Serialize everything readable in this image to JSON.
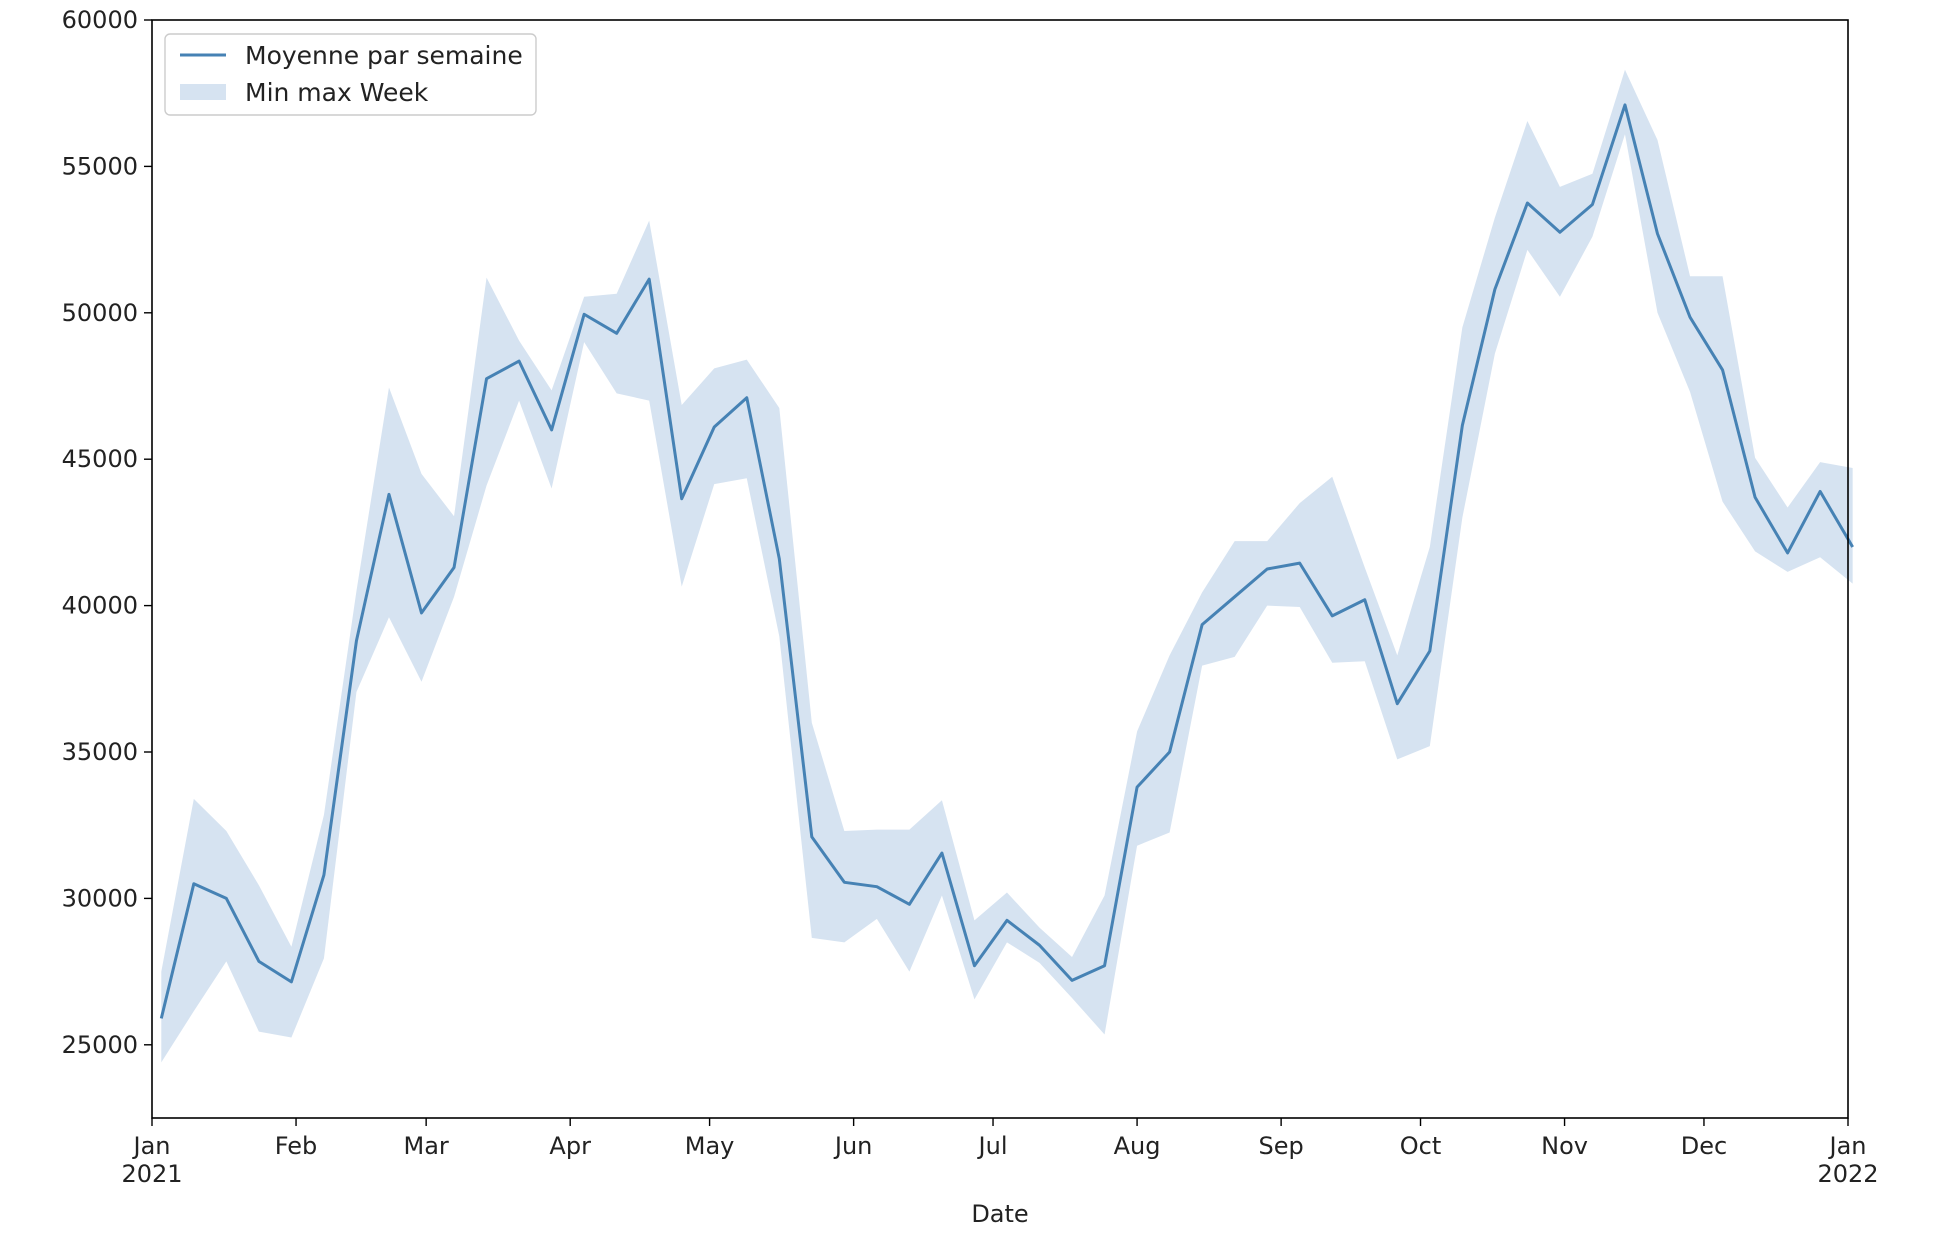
{
  "chart_data": {
    "type": "line",
    "xlabel": "Date",
    "ylabel": "",
    "x_range": [
      "2021-01-01",
      "2022-01-01"
    ],
    "ylim": [
      22500,
      60000
    ],
    "grid": false,
    "legend": {
      "placement": "top-left",
      "entries": [
        "Moyenne par semaine",
        "Min max Week"
      ]
    },
    "colors": {
      "line": "#4682b4",
      "band": "#d6e3f1"
    },
    "x_ticks": [
      {
        "date": "2021-01-01",
        "label": "Jan",
        "year": "2021"
      },
      {
        "date": "2021-02-01",
        "label": "Feb",
        "year": ""
      },
      {
        "date": "2021-03-01",
        "label": "Mar",
        "year": ""
      },
      {
        "date": "2021-04-01",
        "label": "Apr",
        "year": ""
      },
      {
        "date": "2021-05-01",
        "label": "May",
        "year": ""
      },
      {
        "date": "2021-06-01",
        "label": "Jun",
        "year": ""
      },
      {
        "date": "2021-07-01",
        "label": "Jul",
        "year": ""
      },
      {
        "date": "2021-08-01",
        "label": "Aug",
        "year": ""
      },
      {
        "date": "2021-09-01",
        "label": "Sep",
        "year": ""
      },
      {
        "date": "2021-10-01",
        "label": "Oct",
        "year": ""
      },
      {
        "date": "2021-11-01",
        "label": "Nov",
        "year": ""
      },
      {
        "date": "2021-12-01",
        "label": "Dec",
        "year": ""
      },
      {
        "date": "2022-01-01",
        "label": "Jan",
        "year": "2022"
      }
    ],
    "y_ticks": [
      "25000",
      "30000",
      "35000",
      "40000",
      "45000",
      "50000",
      "55000",
      "60000"
    ],
    "x": [
      "2021-01-03",
      "2021-01-10",
      "2021-01-17",
      "2021-01-24",
      "2021-01-31",
      "2021-02-07",
      "2021-02-14",
      "2021-02-21",
      "2021-02-28",
      "2021-03-07",
      "2021-03-14",
      "2021-03-21",
      "2021-03-28",
      "2021-04-04",
      "2021-04-11",
      "2021-04-18",
      "2021-04-25",
      "2021-05-02",
      "2021-05-09",
      "2021-05-16",
      "2021-05-23",
      "2021-05-30",
      "2021-06-06",
      "2021-06-13",
      "2021-06-20",
      "2021-06-27",
      "2021-07-04",
      "2021-07-11",
      "2021-07-18",
      "2021-07-25",
      "2021-08-01",
      "2021-08-08",
      "2021-08-15",
      "2021-08-22",
      "2021-08-29",
      "2021-09-05",
      "2021-09-12",
      "2021-09-19",
      "2021-09-26",
      "2021-10-03",
      "2021-10-10",
      "2021-10-17",
      "2021-10-24",
      "2021-10-31",
      "2021-11-07",
      "2021-11-14",
      "2021-11-21",
      "2021-11-28",
      "2021-12-05",
      "2021-12-12",
      "2021-12-19",
      "2021-12-26",
      "2022-01-02"
    ],
    "series": [
      {
        "name": "Moyenne par semaine",
        "type": "line",
        "values": [
          25900,
          30500,
          30000,
          27850,
          27150,
          30800,
          38800,
          43800,
          39750,
          41300,
          47750,
          48350,
          46000,
          49950,
          49300,
          51150,
          43650,
          46100,
          47100,
          41600,
          32100,
          30550,
          30400,
          29800,
          31550,
          27700,
          29250,
          28400,
          27200,
          27700,
          33800,
          35000,
          39350,
          40300,
          41250,
          41450,
          39650,
          40200,
          36650,
          38450,
          46150,
          50800,
          53750,
          52750,
          53700,
          57100,
          52700,
          49850,
          48050,
          43700,
          41800,
          43900,
          42000
        ]
      },
      {
        "name": "Min max Week",
        "type": "area",
        "min": [
          24400,
          26150,
          27850,
          25450,
          25250,
          27950,
          37050,
          39600,
          37400,
          40300,
          44100,
          47000,
          44000,
          49000,
          47250,
          47000,
          40650,
          44150,
          44350,
          38950,
          28650,
          28500,
          29300,
          27500,
          30100,
          26550,
          28500,
          27800,
          26600,
          25350,
          31800,
          32250,
          37950,
          38250,
          40000,
          39950,
          38050,
          38100,
          34750,
          35200,
          43000,
          48600,
          52150,
          50550,
          52600,
          56100,
          50000,
          47300,
          43550,
          41850,
          41150,
          41650,
          40750
        ],
        "max": [
          27500,
          33400,
          32300,
          30450,
          28350,
          32850,
          40500,
          47450,
          44500,
          43050,
          51200,
          49050,
          47350,
          50550,
          50650,
          53150,
          46850,
          48100,
          48400,
          46750,
          36000,
          32300,
          32350,
          32350,
          33350,
          29250,
          30200,
          29000,
          28000,
          30100,
          35700,
          38300,
          40450,
          42200,
          42200,
          43500,
          44400,
          41300,
          38300,
          42000,
          49500,
          53250,
          56550,
          54300,
          54750,
          58300,
          55900,
          51250,
          51250,
          45050,
          43350,
          44900,
          44700
        ]
      }
    ]
  }
}
